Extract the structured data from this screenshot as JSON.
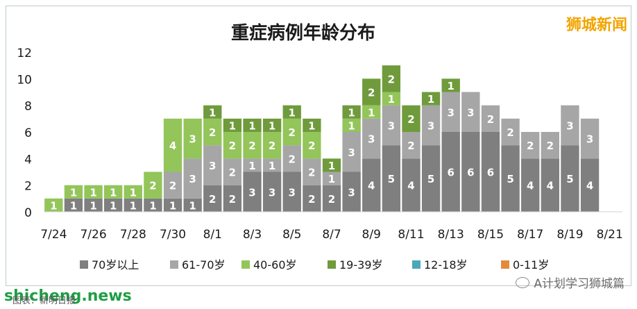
{
  "brand": "狮城新闻",
  "watermark": "shicheng.news",
  "source_note": "图表：新明日报",
  "wechat": "A计划学习狮城篇",
  "chart_data": {
    "type": "bar",
    "stacked": true,
    "title": "重症病例年龄分布",
    "categories": [
      "7/24",
      "7/25",
      "7/26",
      "7/27",
      "7/28",
      "7/29",
      "7/30",
      "7/31",
      "8/1",
      "8/2",
      "8/3",
      "8/4",
      "8/5",
      "8/6",
      "8/7",
      "8/8",
      "8/9",
      "8/10",
      "8/11",
      "8/12",
      "8/13",
      "8/14",
      "8/15",
      "8/16",
      "8/17",
      "8/18",
      "8/19",
      "8/20",
      "8/21"
    ],
    "tick_labels": [
      "7/24",
      "7/26",
      "7/28",
      "7/30",
      "8/1",
      "8/3",
      "8/5",
      "8/7",
      "8/9",
      "8/11",
      "8/13",
      "8/15",
      "8/17",
      "8/19",
      "8/21"
    ],
    "ylim": [
      0,
      12
    ],
    "yticks": [
      0,
      2,
      4,
      6,
      8,
      10,
      12
    ],
    "grid": false,
    "legend_position": "bottom",
    "series": [
      {
        "name": "70岁以上",
        "color": "#7f7f7f",
        "label_color": "#ffffff",
        "values": [
          0,
          1,
          1,
          1,
          1,
          1,
          1,
          1,
          2,
          2,
          3,
          3,
          3,
          2,
          2,
          3,
          4,
          5,
          4,
          5,
          6,
          6,
          6,
          5,
          4,
          4,
          5,
          4,
          0
        ]
      },
      {
        "name": "61-70岁",
        "color": "#a6a6a6",
        "label_color": "#ffffff",
        "values": [
          0,
          0,
          0,
          0,
          0,
          0,
          2,
          3,
          3,
          2,
          1,
          1,
          2,
          2,
          1,
          3,
          3,
          3,
          2,
          3,
          3,
          3,
          2,
          2,
          2,
          2,
          3,
          3,
          0
        ]
      },
      {
        "name": "40-60岁",
        "color": "#93c55a",
        "label_color": "#ffffff",
        "values": [
          1,
          1,
          1,
          1,
          1,
          2,
          4,
          3,
          2,
          2,
          2,
          2,
          2,
          2,
          0,
          1,
          1,
          1,
          0,
          0,
          0,
          0,
          0,
          0,
          0,
          0,
          0,
          0,
          0
        ]
      },
      {
        "name": "19-39岁",
        "color": "#6f9b3c",
        "label_color": "#ffffff",
        "values": [
          0,
          0,
          0,
          0,
          0,
          0,
          0,
          0,
          1,
          1,
          1,
          1,
          1,
          1,
          1,
          1,
          2,
          2,
          2,
          1,
          1,
          0,
          0,
          0,
          0,
          0,
          0,
          0,
          0
        ]
      },
      {
        "name": "12-18岁",
        "color": "#4aa8b8",
        "label_color": "#ffffff",
        "values": [
          0,
          0,
          0,
          0,
          0,
          0,
          0,
          0,
          0,
          0,
          0,
          0,
          0,
          0,
          0,
          0,
          0,
          0,
          0,
          0,
          0,
          0,
          0,
          0,
          0,
          0,
          0,
          0,
          0
        ]
      },
      {
        "name": "0-11岁",
        "color": "#e38a3d",
        "label_color": "#ffffff",
        "values": [
          0,
          0,
          0,
          0,
          0,
          0,
          0,
          0,
          0,
          0,
          0,
          0,
          0,
          0,
          0,
          0,
          0,
          0,
          0,
          0,
          0,
          0,
          0,
          0,
          0,
          0,
          0,
          0,
          0
        ]
      }
    ]
  }
}
